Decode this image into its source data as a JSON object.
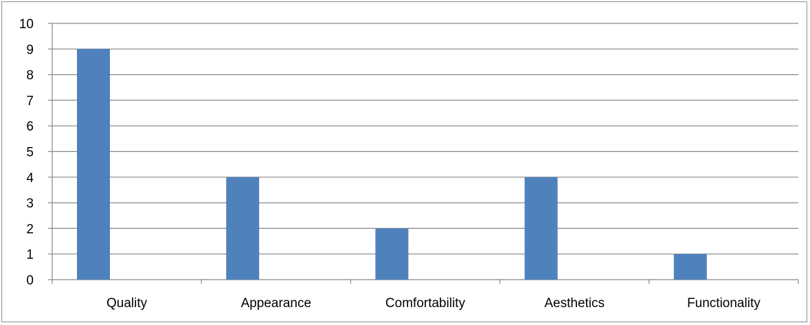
{
  "chart_data": {
    "type": "bar",
    "categories": [
      "Quality",
      "Appearance",
      "Comfortability",
      "Aesthetics",
      "Functionality"
    ],
    "values": [
      9,
      4,
      2,
      4,
      1
    ],
    "title": "",
    "xlabel": "",
    "ylabel": "",
    "ylim": [
      0,
      10
    ],
    "yticks": [
      "0",
      "1",
      "2",
      "3",
      "4",
      "5",
      "6",
      "7",
      "8",
      "9",
      "10"
    ],
    "grid": true,
    "legend": "none",
    "bar_color": "#4f81bd",
    "grid_color": "#868686"
  }
}
